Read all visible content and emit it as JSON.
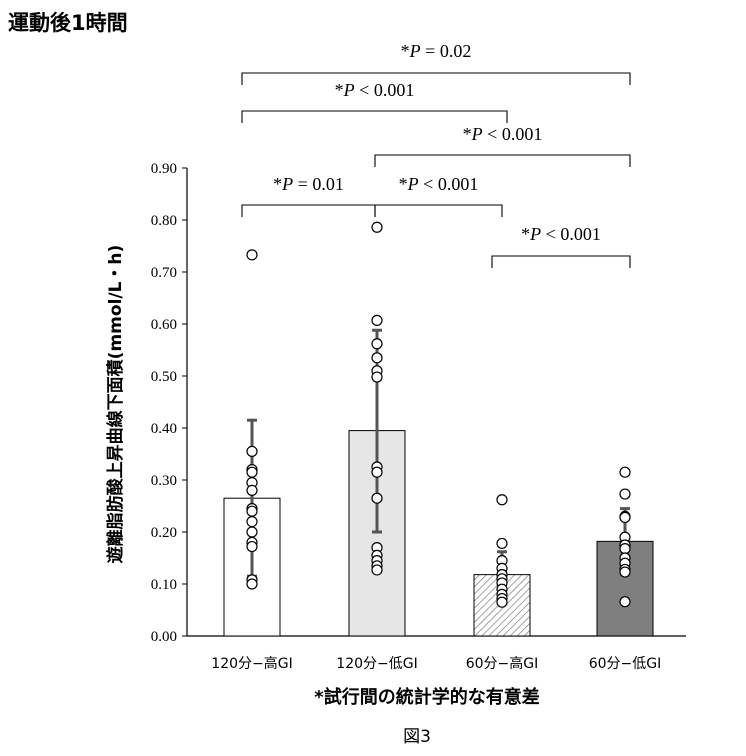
{
  "chart_data": {
    "type": "bar",
    "title": "運動後1時間",
    "ylabel": "遊離脂肪酸上昇曲線下面積(mmol/L・h)",
    "xlabel": "*試行間の統計学的な有意差",
    "caption": "図3",
    "ylim": [
      0,
      0.9
    ],
    "yticks": [
      "0.00",
      "0.10",
      "0.20",
      "0.30",
      "0.40",
      "0.50",
      "0.60",
      "0.70",
      "0.80",
      "0.90"
    ],
    "categories": [
      "120分−高GI",
      "120分−低GI",
      "60分−高GI",
      "60分−低GI"
    ],
    "means": [
      0.265,
      0.395,
      0.118,
      0.182
    ],
    "sd_upper": [
      0.415,
      0.588,
      0.162,
      0.245
    ],
    "sd_lower": [
      0.115,
      0.2,
      0.074,
      0.119
    ],
    "fills": [
      "#ffffff",
      "#e6e6e6",
      "hatch",
      "#7f7f7f"
    ],
    "points": [
      [
        0.733,
        0.355,
        0.32,
        0.315,
        0.295,
        0.28,
        0.245,
        0.24,
        0.22,
        0.2,
        0.18,
        0.172,
        0.108,
        0.1
      ],
      [
        0.786,
        0.607,
        0.562,
        0.535,
        0.51,
        0.498,
        0.325,
        0.315,
        0.265,
        0.17,
        0.155,
        0.145,
        0.135,
        0.127
      ],
      [
        0.262,
        0.178,
        0.145,
        0.13,
        0.118,
        0.11,
        0.102,
        0.09,
        0.08,
        0.072,
        0.065
      ],
      [
        0.315,
        0.273,
        0.23,
        0.228,
        0.19,
        0.175,
        0.168,
        0.15,
        0.14,
        0.128,
        0.123,
        0.066
      ]
    ],
    "comparisons": [
      {
        "from": 0,
        "to": 3,
        "label": "*P = 0.02"
      },
      {
        "from": 0,
        "to": 2,
        "label": "*P < 0.001"
      },
      {
        "from": 1,
        "to": 3,
        "label": "*P < 0.001"
      },
      {
        "from": 0,
        "to": 1,
        "label": "*P = 0.01"
      },
      {
        "from": 1,
        "to": 2,
        "label": "*P < 0.001"
      },
      {
        "from": 2,
        "to": 3,
        "label": "*P < 0.001"
      }
    ],
    "grid": false,
    "legend": "none"
  }
}
